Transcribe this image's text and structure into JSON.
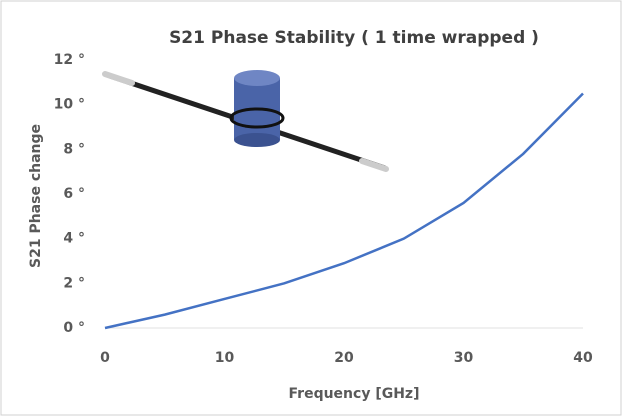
{
  "chart_data": {
    "type": "line",
    "title": "S21 Phase Stability ( 1 time wrapped )",
    "x_label": "Frequency [GHz]",
    "y_label": "S21 Phase change",
    "x": [
      0,
      5,
      10,
      15,
      20,
      25,
      30,
      35,
      40
    ],
    "series": [
      {
        "color": "#4472c4",
        "values": [
          0,
          0.6,
          1.3,
          2.0,
          2.9,
          4.0,
          5.6,
          7.8,
          10.5
        ]
      }
    ],
    "xlim": [
      0,
      40
    ],
    "xticks": [
      0,
      10,
      20,
      30,
      40
    ],
    "ylim": [
      0,
      12
    ],
    "yticks": [
      {
        "value": 0,
        "label": "0 °"
      },
      {
        "value": 2,
        "label": "2 °"
      },
      {
        "value": 4,
        "label": "4 °"
      },
      {
        "value": 6,
        "label": "6 °"
      },
      {
        "value": 8,
        "label": "8 °"
      },
      {
        "value": 10,
        "label": "10 °"
      },
      {
        "value": 12,
        "label": "12 °"
      }
    ],
    "grid": false
  }
}
